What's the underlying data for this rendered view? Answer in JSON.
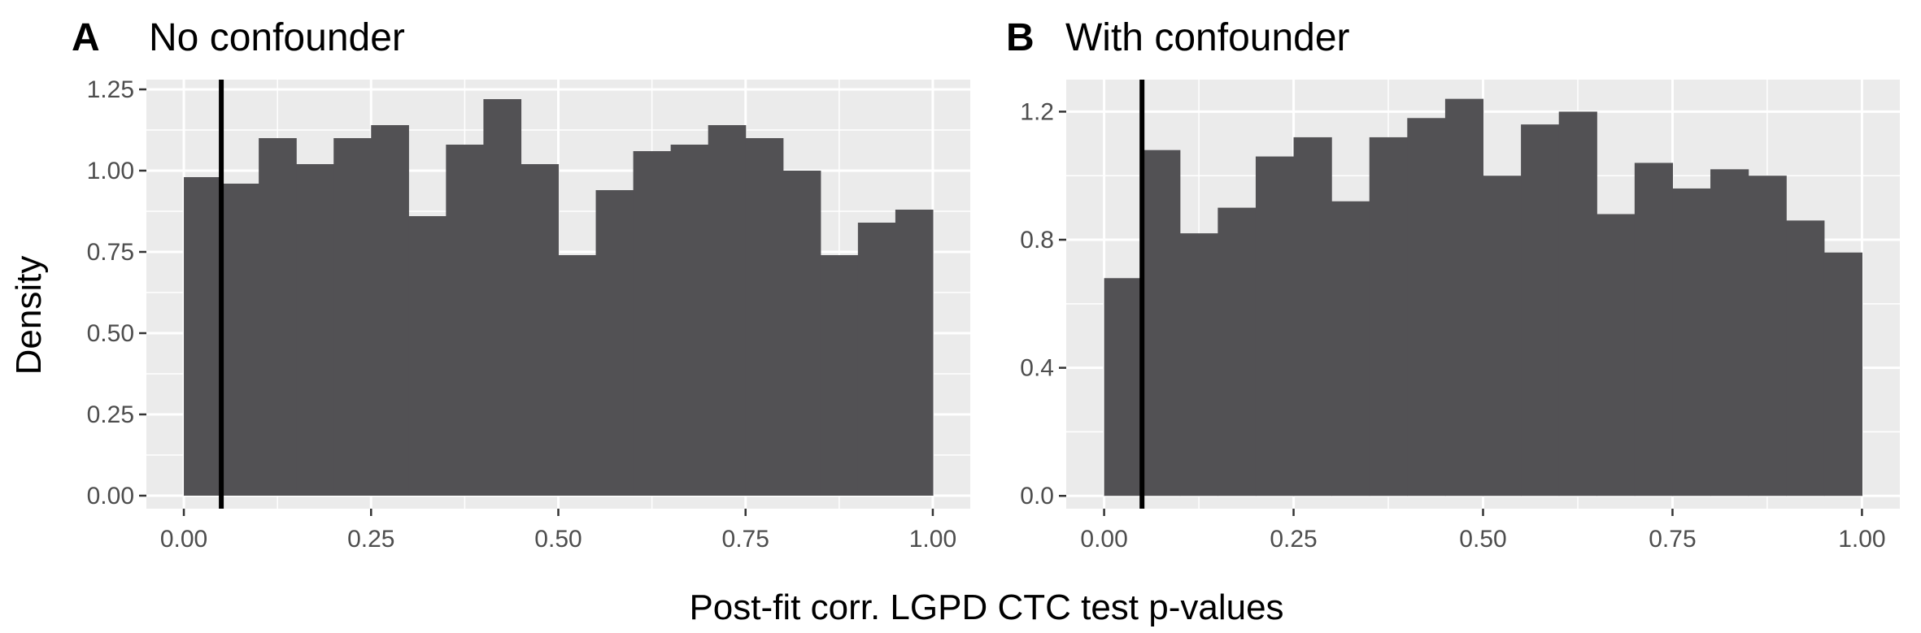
{
  "figure": {
    "xlabel": "Post-fit corr. LGPD CTC test p-values",
    "ylabel": "Density"
  },
  "colors": {
    "panel_bg": "#ebebeb",
    "grid": "#ffffff",
    "bar": "#525154",
    "vline": "#000000",
    "tick_text": "#4d4d4d"
  },
  "chart_data": [
    {
      "type": "bar",
      "tag": "A",
      "title": "No confounder",
      "xlabel": "Post-fit corr. LGPD CTC test p-values",
      "ylabel": "Density",
      "bin_width": 0.05,
      "bins_start": [
        0.0,
        0.05,
        0.1,
        0.15,
        0.2,
        0.25,
        0.3,
        0.35,
        0.4,
        0.45,
        0.5,
        0.55,
        0.6,
        0.65,
        0.7,
        0.75,
        0.8,
        0.85,
        0.9,
        0.95
      ],
      "values": [
        0.98,
        0.96,
        1.1,
        1.02,
        1.1,
        1.14,
        0.86,
        1.08,
        1.22,
        1.02,
        0.74,
        0.94,
        1.06,
        1.08,
        1.14,
        1.1,
        1.0,
        0.74,
        0.84,
        0.88
      ],
      "xlim": [
        -0.05,
        1.05
      ],
      "ylim": [
        -0.04,
        1.28
      ],
      "xticks": [
        0,
        0.25,
        0.5,
        0.75,
        1.0
      ],
      "xtick_labels": [
        "0.00",
        "0.25",
        "0.50",
        "0.75",
        "1.00"
      ],
      "yticks": [
        0,
        0.25,
        0.5,
        0.75,
        1.0,
        1.25
      ],
      "ytick_labels": [
        "0.00",
        "0.25",
        "0.50",
        "0.75",
        "1.00",
        "1.25"
      ],
      "vline": 0.05,
      "grid": true
    },
    {
      "type": "bar",
      "tag": "B",
      "title": "With confounder",
      "xlabel": "Post-fit corr. LGPD CTC test p-values",
      "ylabel": "Density",
      "bin_width": 0.05,
      "bins_start": [
        0.0,
        0.05,
        0.1,
        0.15,
        0.2,
        0.25,
        0.3,
        0.35,
        0.4,
        0.45,
        0.5,
        0.55,
        0.6,
        0.65,
        0.7,
        0.75,
        0.8,
        0.85,
        0.9,
        0.95
      ],
      "values": [
        0.68,
        1.08,
        0.82,
        0.9,
        1.06,
        1.12,
        0.92,
        1.12,
        1.18,
        1.24,
        1.0,
        1.16,
        1.2,
        0.88,
        1.04,
        0.96,
        1.02,
        1.0,
        0.86,
        0.76
      ],
      "xlim": [
        -0.05,
        1.05
      ],
      "ylim": [
        -0.04,
        1.3
      ],
      "xticks": [
        0,
        0.25,
        0.5,
        0.75,
        1.0
      ],
      "xtick_labels": [
        "0.00",
        "0.25",
        "0.50",
        "0.75",
        "1.00"
      ],
      "yticks": [
        0,
        0.4,
        0.8,
        1.2
      ],
      "ytick_labels": [
        "0.0",
        "0.4",
        "0.8",
        "1.2"
      ],
      "vline": 0.05,
      "grid": true
    }
  ]
}
